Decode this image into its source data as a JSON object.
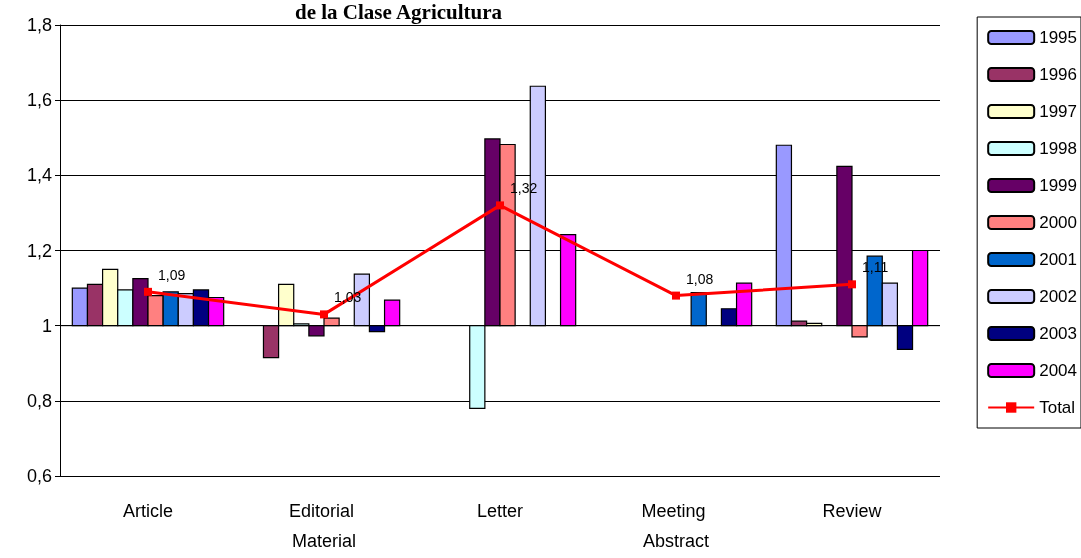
{
  "chart_data": {
    "type": "bar",
    "title": "de la Clase Agricultura",
    "categories": [
      "Article",
      "Editorial Material",
      "Letter",
      "Meeting Abstract",
      "Review"
    ],
    "series": [
      {
        "name": "1995",
        "color": "#9999ff",
        "values": [
          0.1,
          null,
          null,
          null,
          0.48
        ],
        "base": [
          1,
          null,
          null,
          null,
          1
        ]
      },
      {
        "name": "1996",
        "color": "#993366",
        "values": [
          0.11,
          -0.085,
          null,
          null,
          0.012
        ],
        "base": [
          1,
          1,
          null,
          null,
          1
        ]
      },
      {
        "name": "1997",
        "color": "#ffffcc",
        "values": [
          0.15,
          0.11,
          null,
          null,
          0.006
        ],
        "base": [
          1,
          1,
          null,
          null,
          1
        ]
      },
      {
        "name": "1998",
        "color": "#ccffff",
        "values": [
          0.095,
          0.005,
          -0.22,
          null,
          null
        ],
        "base": [
          1,
          1,
          1,
          null,
          null
        ]
      },
      {
        "name": "1999",
        "color": "#660066",
        "values": [
          0.125,
          -0.027,
          0.497,
          null,
          0.424
        ],
        "base": [
          1,
          1,
          1,
          null,
          1
        ]
      },
      {
        "name": "2000",
        "color": "#ff8080",
        "values": [
          0.08,
          0.02,
          0.482,
          null,
          -0.03
        ],
        "base": [
          1,
          1,
          1,
          null,
          1
        ]
      },
      {
        "name": "2001",
        "color": "#0066cc",
        "values": [
          0.09,
          null,
          null,
          0.088,
          0.185
        ],
        "base": [
          1,
          null,
          null,
          1,
          1
        ]
      },
      {
        "name": "2002",
        "color": "#ccccff",
        "values": [
          0.085,
          0.137,
          0.637,
          null,
          0.113
        ],
        "base": [
          1,
          1,
          1,
          null,
          1
        ]
      },
      {
        "name": "2003",
        "color": "#000080",
        "values": [
          0.095,
          -0.016,
          null,
          0.045,
          -0.063
        ],
        "base": [
          1,
          1,
          null,
          1,
          1
        ]
      },
      {
        "name": "2004",
        "color": "#ff00ff",
        "values": [
          0.075,
          0.068,
          0.242,
          0.113,
          0.2
        ],
        "base": [
          1,
          1,
          1,
          1,
          1
        ]
      },
      {
        "name": "Total",
        "type": "line",
        "color": "#ff0000",
        "values": [
          1.09,
          1.03,
          1.32,
          1.08,
          1.11
        ],
        "value_labels": [
          "1,09",
          "1,03",
          "1,32",
          "1,08",
          "1,11"
        ],
        "marker": "square",
        "line_style": "solid"
      }
    ],
    "ylim": [
      0.6,
      1.8
    ],
    "yticks": [
      {
        "value": 0.6,
        "label": "0,6"
      },
      {
        "value": 0.8,
        "label": "0,8"
      },
      {
        "value": 1,
        "label": "1"
      },
      {
        "value": 1.2,
        "label": "1,2"
      },
      {
        "value": 1.4,
        "label": "1,4"
      },
      {
        "value": 1.6,
        "label": "1,6"
      },
      {
        "value": 1.8,
        "label": "1,8"
      }
    ],
    "grid": "y",
    "legend": "right"
  }
}
